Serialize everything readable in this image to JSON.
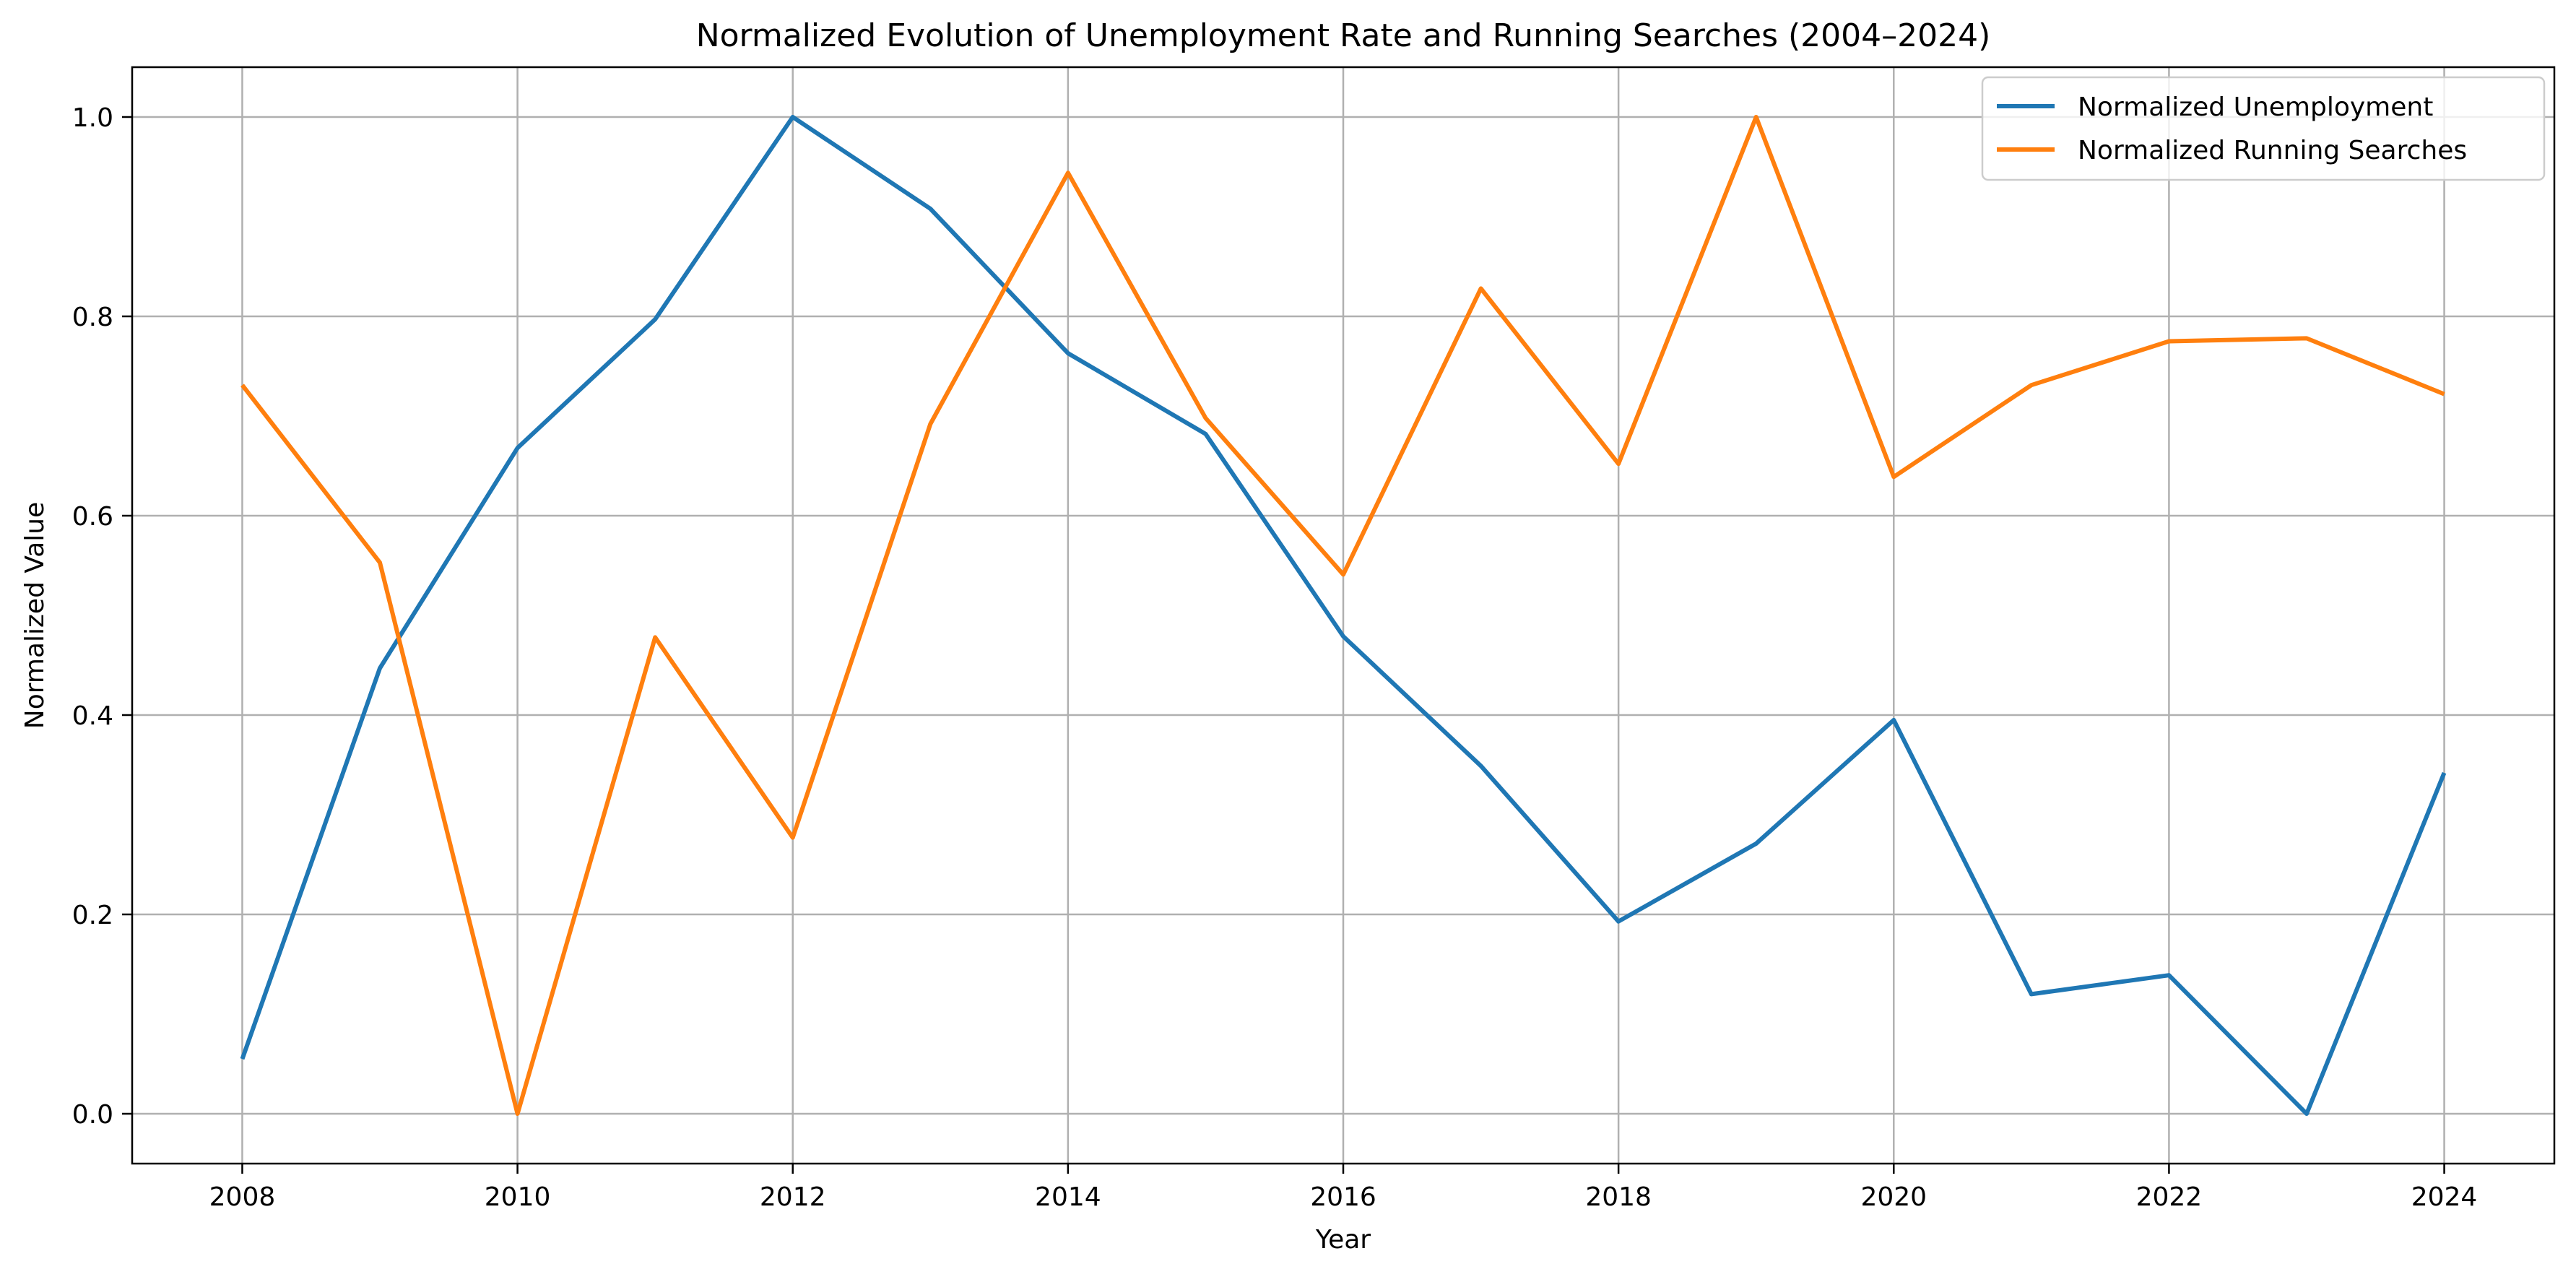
{
  "chart_data": {
    "type": "line",
    "title": "Normalized Evolution of Unemployment Rate and Running Searches (2004–2024)",
    "xlabel": "Year",
    "ylabel": "Normalized Value",
    "x": [
      2008,
      2009,
      2010,
      2011,
      2012,
      2013,
      2014,
      2015,
      2016,
      2017,
      2018,
      2019,
      2020,
      2021,
      2022,
      2023,
      2024
    ],
    "xlim": [
      2007.2,
      2024.8
    ],
    "ylim": [
      -0.05,
      1.05
    ],
    "xticks": [
      2008,
      2010,
      2012,
      2014,
      2016,
      2018,
      2020,
      2022,
      2024
    ],
    "xtick_labels": [
      "2008",
      "2010",
      "2012",
      "2014",
      "2016",
      "2018",
      "2020",
      "2022",
      "2024"
    ],
    "yticks": [
      0.0,
      0.2,
      0.4,
      0.6,
      0.8,
      1.0
    ],
    "ytick_labels": [
      "0.0",
      "0.2",
      "0.4",
      "0.6",
      "0.8",
      "1.0"
    ],
    "grid": true,
    "legend_position": "top-right",
    "series": [
      {
        "name": "Normalized Unemployment",
        "color": "#1f77b4",
        "values": [
          0.055,
          0.447,
          0.668,
          0.797,
          1.0,
          0.908,
          0.763,
          0.682,
          0.479,
          0.349,
          0.193,
          0.271,
          0.395,
          0.12,
          0.139,
          0.0,
          0.342
        ]
      },
      {
        "name": "Normalized Running Searches",
        "color": "#ff7f0e",
        "values": [
          0.731,
          0.553,
          0.0,
          0.478,
          0.277,
          0.692,
          0.944,
          0.698,
          0.541,
          0.828,
          0.652,
          1.0,
          0.639,
          0.731,
          0.775,
          0.778,
          0.722
        ]
      }
    ]
  }
}
